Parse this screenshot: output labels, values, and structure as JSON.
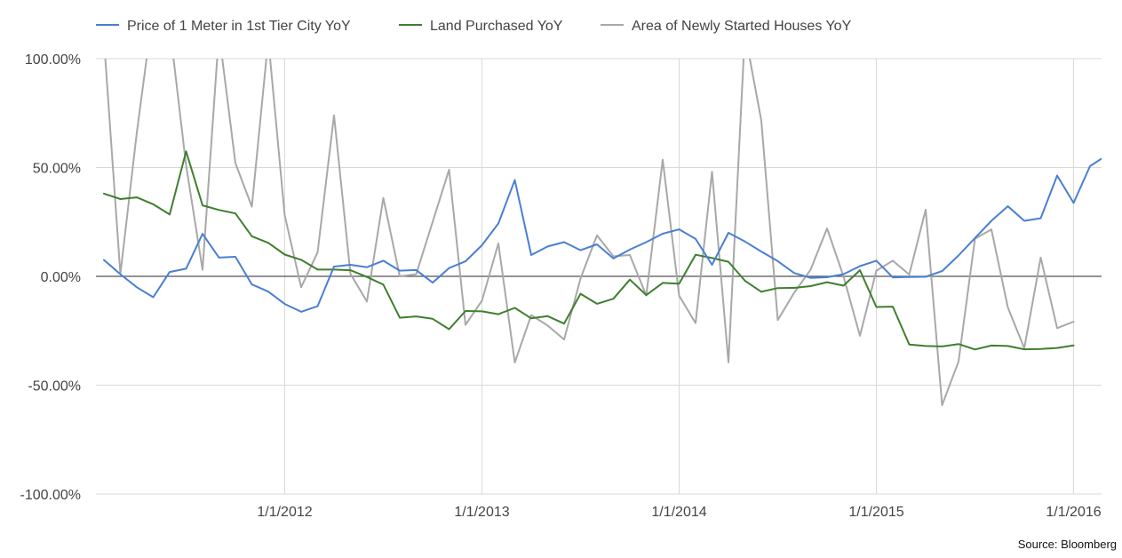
{
  "chart_data": {
    "type": "line",
    "x_start": "2011-02",
    "x_step": "month",
    "ylim": [
      -100,
      100
    ],
    "yticks": [
      100,
      50,
      0,
      -50,
      -100
    ],
    "ytick_labels": [
      "100.00%",
      "50.00%",
      "0.00%",
      "-50.00%",
      "-100.00%"
    ],
    "xtick_labels": [
      "1/1/2012",
      "1/1/2013",
      "1/1/2014",
      "1/1/2015",
      "1/1/2016"
    ],
    "grid": true,
    "legend": "top-left",
    "series": [
      {
        "name": "Price of 1 Meter in 1st Tier City YoY",
        "color": "#4a7fd1",
        "values": [
          7.5,
          1,
          -5,
          -9.6,
          2,
          3.5,
          19.5,
          8.6,
          9,
          -3.7,
          -7,
          -12.7,
          -16.3,
          -13.7,
          4.5,
          5.3,
          4.2,
          7.2,
          2.6,
          2.9,
          -2.9,
          3.8,
          6.9,
          14.3,
          24.3,
          44.2,
          9.8,
          13.7,
          15.7,
          12,
          14.7,
          8.2,
          12.3,
          15.7,
          19.6,
          21.6,
          17.2,
          5.3,
          20,
          16,
          11.4,
          7,
          1.5,
          -0.7,
          -0.4,
          1,
          4.7,
          7.2,
          -0.5,
          -0.3,
          -0.2,
          2.4,
          9.6,
          17.6,
          25.5,
          32.2,
          25.5,
          26.7,
          46.3,
          33.7,
          50.6,
          55.5
        ]
      },
      {
        "name": "Land Purchased YoY",
        "color": "#3f7f2e",
        "values": [
          38,
          35.5,
          36.3,
          33.1,
          28.4,
          57.4,
          32.6,
          30.5,
          28.9,
          18.4,
          15.4,
          10,
          7.6,
          3.1,
          3.1,
          2.8,
          -0.3,
          -3.8,
          -19,
          -18.4,
          -19.5,
          -24.3,
          -15.9,
          -16.1,
          -17.4,
          -14.5,
          -19.3,
          -18.3,
          -21.7,
          -8,
          -12.6,
          -10.3,
          -1.5,
          -8.6,
          -3,
          -3.4,
          9.9,
          8.4,
          6.7,
          -2,
          -7.1,
          -5.4,
          -5.3,
          -4.5,
          -2.7,
          -4.3,
          2.8,
          -14.1,
          -13.9,
          -31.3,
          -32,
          -32.2,
          -31.1,
          -33.6,
          -31.8,
          -32,
          -33.5,
          -33.4,
          -32.9,
          -31.7
        ]
      },
      {
        "name": "Area of Newly Started Houses YoY",
        "color": "#a8a8a8",
        "values": [
          109,
          1,
          66,
          123,
          115,
          51,
          3,
          112,
          52,
          32,
          109,
          28,
          -5,
          11,
          74,
          1.2,
          -11.6,
          36,
          0,
          1,
          25,
          49,
          -22.3,
          -11.2,
          15.1,
          -39.6,
          -17.8,
          -22.6,
          -29,
          -1,
          18.8,
          9.2,
          9.8,
          -8.8,
          53.6,
          -8.9,
          -21.5,
          48.1,
          -39.5,
          112,
          71.5,
          -20.1,
          -7.5,
          3.1,
          22,
          0,
          -27.3,
          2.6,
          7.2,
          0.8,
          30.6,
          -59.2,
          -39.1,
          17.3,
          21.5,
          -14.3,
          -33,
          8.6,
          -23.8,
          -20.8
        ]
      }
    ]
  },
  "source": "Source: Bloomberg"
}
